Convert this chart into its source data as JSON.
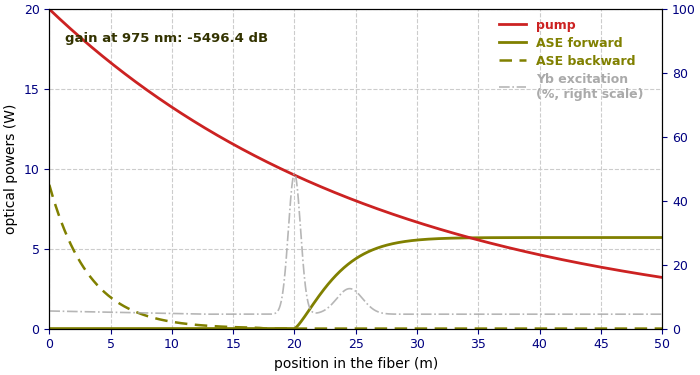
{
  "title_annotation": "gain at 975 nm: ‑5496.4 dB",
  "xlabel": "position in the fiber (m)",
  "ylabel": "optical powers (W)",
  "xlim": [
    0,
    50
  ],
  "ylim_left": [
    0,
    20
  ],
  "ylim_right": [
    0,
    100
  ],
  "xticks": [
    0,
    5,
    10,
    15,
    20,
    25,
    30,
    35,
    40,
    45,
    50
  ],
  "yticks_left": [
    0,
    5,
    10,
    15,
    20
  ],
  "yticks_right": [
    0,
    20,
    40,
    60,
    80,
    100
  ],
  "pump_color": "#cc2222",
  "ase_color": "#808000",
  "yb_color": "#aaaaaa",
  "annotation_color": "#333300",
  "legend_pump_label": "pump",
  "legend_ase_fwd_label": "ASE forward",
  "legend_ase_bwd_label": "ASE backward",
  "legend_yb_label": "Yb excitation\n(%, right scale)",
  "bg_color": "#ffffff",
  "grid_color": "#cccccc",
  "figsize": [
    7.0,
    3.75
  ],
  "dpi": 100
}
